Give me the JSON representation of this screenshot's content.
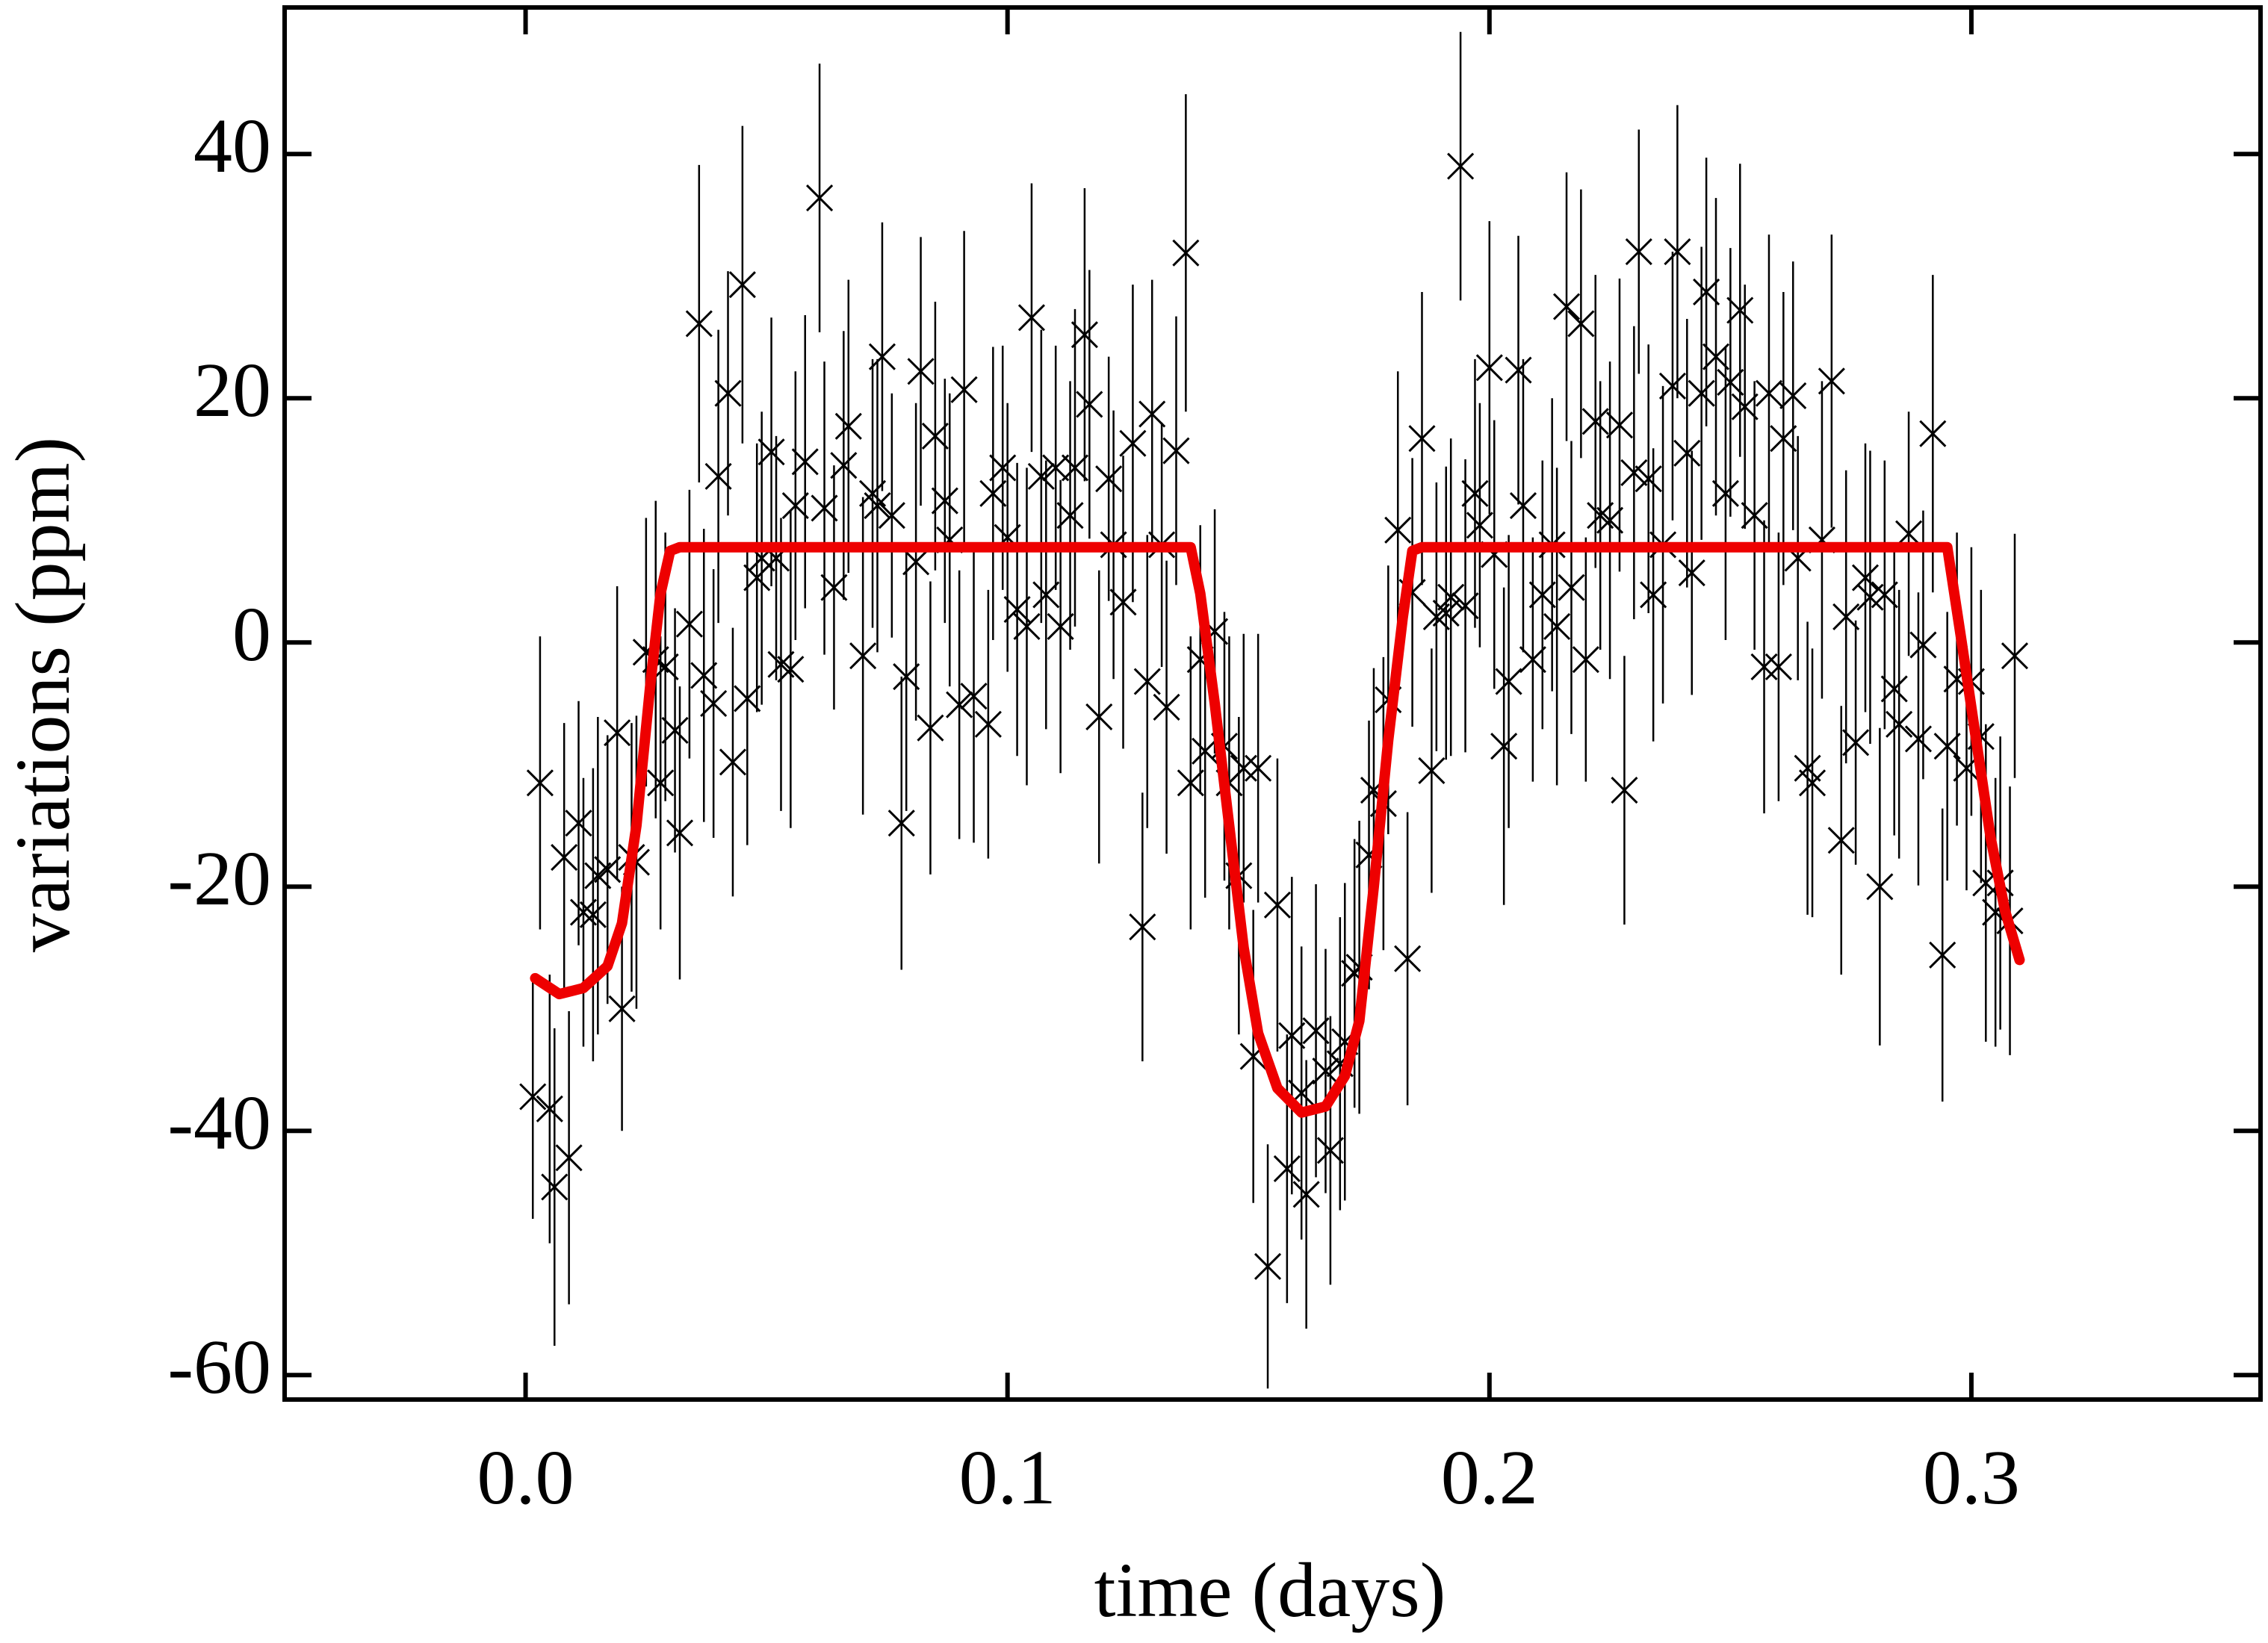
{
  "chart_data": {
    "type": "scatter",
    "xlabel": "time (days)",
    "ylabel": "variations (ppm)",
    "xlim": [
      -0.05,
      0.36
    ],
    "ylim": [
      -62,
      52
    ],
    "xticks": [
      {
        "value": 0,
        "label": "0.0"
      },
      0.1,
      0.2,
      0.3
    ],
    "yticks": [
      -60,
      -40,
      -20,
      0,
      20,
      40
    ],
    "color": "#000000",
    "x": [
      0.0015,
      0.003,
      0.005,
      0.006,
      0.008,
      0.009,
      0.011,
      0.012,
      0.014,
      0.015,
      0.017,
      0.019,
      0.02,
      0.022,
      0.023,
      0.025,
      0.027,
      0.028,
      0.029,
      0.031,
      0.032,
      0.034,
      0.036,
      0.037,
      0.039,
      0.04,
      0.042,
      0.043,
      0.045,
      0.046,
      0.048,
      0.049,
      0.051,
      0.052,
      0.053,
      0.055,
      0.056,
      0.058,
      0.061,
      0.062,
      0.064,
      0.066,
      0.067,
      0.07,
      0.072,
      0.073,
      0.074,
      0.076,
      0.078,
      0.079,
      0.081,
      0.082,
      0.084,
      0.085,
      0.087,
      0.088,
      0.09,
      0.091,
      0.093,
      0.096,
      0.097,
      0.099,
      0.1,
      0.102,
      0.104,
      0.105,
      0.107,
      0.108,
      0.11,
      0.111,
      0.113,
      0.114,
      0.116,
      0.117,
      0.119,
      0.121,
      0.122,
      0.124,
      0.126,
      0.128,
      0.129,
      0.13,
      0.132,
      0.133,
      0.135,
      0.137,
      0.138,
      0.14,
      0.141,
      0.143,
      0.145,
      0.146,
      0.148,
      0.149,
      0.151,
      0.152,
      0.154,
      0.156,
      0.158,
      0.159,
      0.161,
      0.162,
      0.164,
      0.166,
      0.167,
      0.169,
      0.17,
      0.172,
      0.173,
      0.175,
      0.176,
      0.178,
      0.179,
      0.181,
      0.183,
      0.184,
      0.186,
      0.188,
      0.189,
      0.191,
      0.192,
      0.194,
      0.195,
      0.197,
      0.198,
      0.2,
      0.201,
      0.203,
      0.204,
      0.206,
      0.207,
      0.209,
      0.211,
      0.213,
      0.214,
      0.216,
      0.217,
      0.219,
      0.22,
      0.222,
      0.223,
      0.225,
      0.227,
      0.228,
      0.23,
      0.231,
      0.233,
      0.234,
      0.236,
      0.238,
      0.239,
      0.241,
      0.242,
      0.244,
      0.245,
      0.247,
      0.249,
      0.25,
      0.252,
      0.253,
      0.255,
      0.257,
      0.258,
      0.26,
      0.261,
      0.263,
      0.264,
      0.266,
      0.267,
      0.269,
      0.271,
      0.273,
      0.274,
      0.276,
      0.278,
      0.279,
      0.281,
      0.282,
      0.284,
      0.285,
      0.287,
      0.289,
      0.29,
      0.292,
      0.294,
      0.295,
      0.297,
      0.299,
      0.3,
      0.302,
      0.303,
      0.305,
      0.306,
      0.308,
      0.309
    ],
    "values": [
      -37.2,
      -11.5,
      -38.2,
      -44.6,
      -17.6,
      -42.2,
      -14.8,
      -22.1,
      -22.3,
      -19.1,
      -18.6,
      -7.4,
      -30.0,
      -17.6,
      -18.0,
      -0.8,
      -1.4,
      -11.5,
      -2.0,
      -7.2,
      -15.6,
      1.5,
      26.1,
      -2.7,
      -5.0,
      13.6,
      20.4,
      -9.8,
      29.3,
      -4.6,
      5.3,
      6.9,
      15.6,
      6.9,
      -1.8,
      -2.2,
      11.2,
      14.8,
      36.4,
      11.0,
      4.5,
      14.5,
      17.7,
      -1.1,
      12.2,
      11.2,
      23.4,
      10.4,
      -14.8,
      -2.8,
      6.6,
      22.2,
      -7.0,
      16.9,
      11.6,
      8.4,
      -5.1,
      20.7,
      -4.4,
      -6.7,
      12.2,
      14.3,
      8.6,
      2.7,
      1.3,
      26.6,
      13.6,
      3.9,
      14.3,
      1.3,
      10.4,
      14.3,
      25.2,
      19.5,
      -6.1,
      13.4,
      8.0,
      3.3,
      16.3,
      -23.3,
      -3.2,
      18.7,
      8.0,
      -5.3,
      15.7,
      31.9,
      -11.5,
      -1.4,
      -8.9,
      0.9,
      -8.5,
      -11.5,
      -19.1,
      -10.3,
      -33.9,
      -10.3,
      -51.1,
      -21.5,
      -43.1,
      -32.2,
      -36.9,
      -45.2,
      -31.8,
      -35.1,
      -41.6,
      -34.5,
      -32.7,
      -27.1,
      -26.6,
      -17.4,
      -12.1,
      -13.2,
      -4.7,
      9.2,
      -25.9,
      4.1,
      16.7,
      -10.5,
      2.1,
      2.4,
      3.7,
      39.0,
      3.0,
      12.2,
      9.6,
      22.5,
      7.2,
      -8.5,
      -3.2,
      22.3,
      11.2,
      -1.4,
      3.9,
      8.0,
      1.3,
      27.5,
      4.5,
      26.1,
      -1.4,
      18.1,
      10.4,
      10.0,
      17.8,
      -12.1,
      13.9,
      32.0,
      13.4,
      3.9,
      8.0,
      21.0,
      32.0,
      15.5,
      5.7,
      20.4,
      28.7,
      23.4,
      12.2,
      21.3,
      27.2,
      19.3,
      10.4,
      -2.0,
      20.4,
      -2.0,
      16.7,
      20.2,
      6.9,
      -10.3,
      -11.5,
      8.4,
      21.4,
      -16.2,
      2.1,
      -8.2,
      5.3,
      3.7,
      -20.0,
      3.9,
      -3.8,
      -6.7,
      8.9,
      -7.9,
      -0.2,
      17.1,
      -25.6,
      -8.5,
      -3.0,
      -10.3,
      -3.2,
      -7.7,
      -19.7,
      -22.1,
      -19.7,
      -22.8,
      -1.1
    ],
    "errors": [
      10,
      12,
      11,
      13,
      11,
      12,
      10,
      11,
      12,
      13,
      11,
      12,
      10,
      11,
      12,
      11,
      13,
      12,
      11,
      10,
      12,
      11,
      13,
      12,
      11,
      12,
      10,
      11,
      13,
      12,
      11,
      12,
      11,
      10,
      12,
      13,
      11,
      12,
      11,
      12,
      10,
      11,
      12,
      13,
      11,
      12,
      11,
      10,
      12,
      11,
      13,
      11,
      12,
      11,
      10,
      12,
      11,
      13,
      12,
      11,
      12,
      10,
      11,
      12,
      13,
      11,
      12,
      11,
      10,
      12,
      11,
      13,
      12,
      11,
      12,
      10,
      11,
      12,
      13,
      11,
      12,
      11,
      10,
      12,
      11,
      13,
      12,
      11,
      12,
      10,
      11,
      12,
      13,
      11,
      12,
      11,
      10,
      12,
      11,
      13,
      12,
      11,
      12,
      10,
      11,
      12,
      13,
      11,
      12,
      11,
      10,
      12,
      11,
      13,
      12,
      11,
      12,
      10,
      11,
      12,
      13,
      11,
      12,
      11,
      10,
      12,
      11,
      13,
      12,
      11,
      12,
      10,
      11,
      12,
      13,
      11,
      12,
      11,
      10,
      12,
      11,
      13,
      12,
      11,
      12,
      10,
      11,
      12,
      13,
      11,
      12,
      11,
      10,
      12,
      11,
      13,
      12,
      11,
      12,
      10,
      11,
      12,
      13,
      11,
      12,
      11,
      10,
      12,
      11,
      13,
      12,
      11,
      12,
      10,
      11,
      12,
      13,
      11,
      12,
      11,
      10,
      12,
      11,
      13,
      12,
      11,
      12,
      10,
      11,
      12,
      13,
      11,
      12,
      11,
      10
    ],
    "model": {
      "color": "#ee0000",
      "x": [
        0.002,
        0.007,
        0.012,
        0.017,
        0.02,
        0.023,
        0.026,
        0.028,
        0.03,
        0.032,
        0.138,
        0.14,
        0.143,
        0.146,
        0.149,
        0.152,
        0.156,
        0.161,
        0.166,
        0.17,
        0.173,
        0.176,
        0.179,
        0.182,
        0.184,
        0.186,
        0.295,
        0.298,
        0.301,
        0.304,
        0.307,
        0.31
      ],
      "values": [
        -27.5,
        -28.8,
        -28.3,
        -26.5,
        -23,
        -15,
        -3,
        4,
        7.5,
        7.8,
        7.8,
        4,
        -5,
        -15,
        -25,
        -32,
        -36.5,
        -38.5,
        -38,
        -35.5,
        -31,
        -20,
        -8,
        2,
        7.5,
        7.8,
        7.8,
        0,
        -8,
        -16,
        -22,
        -26
      ]
    }
  }
}
